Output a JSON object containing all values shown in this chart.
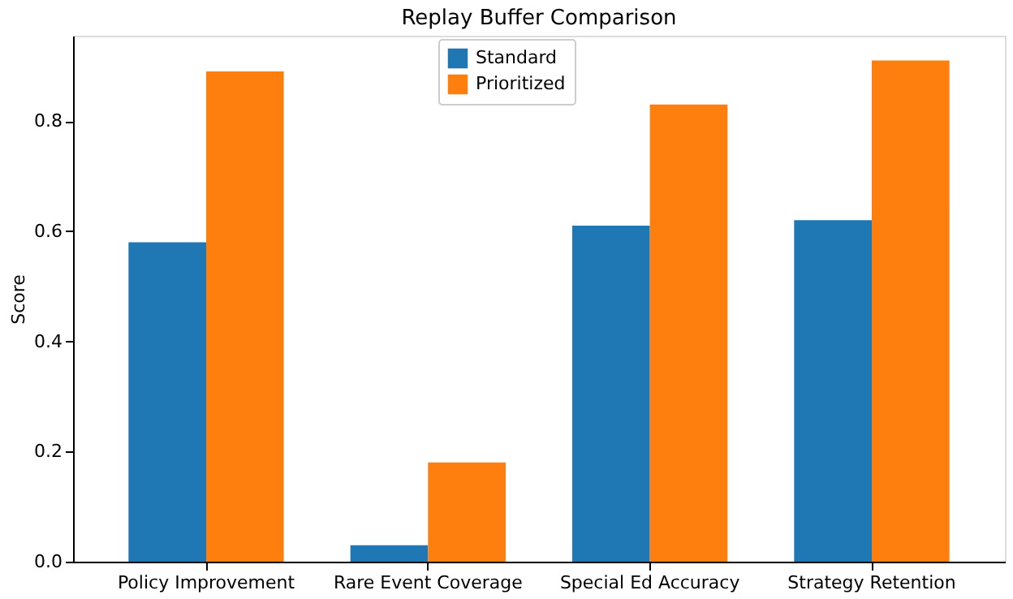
{
  "chart_data": {
    "type": "bar",
    "title": "Replay Buffer Comparison",
    "ylabel": "Score",
    "categories": [
      "Policy Improvement",
      "Rare Event Coverage",
      "Special Ed Accuracy",
      "Strategy Retention"
    ],
    "series": [
      {
        "name": "Standard",
        "color": "#1f77b4",
        "values": [
          0.58,
          0.03,
          0.61,
          0.62
        ]
      },
      {
        "name": "Prioritized",
        "color": "#ff7f0e",
        "values": [
          0.89,
          0.18,
          0.83,
          0.91
        ]
      }
    ],
    "ylim": [
      0,
      0.955
    ],
    "yticks": [
      {
        "value": 0,
        "label": "0.0"
      },
      0.2,
      0.4,
      0.6,
      0.8
    ],
    "grid": false,
    "legend": "top"
  }
}
